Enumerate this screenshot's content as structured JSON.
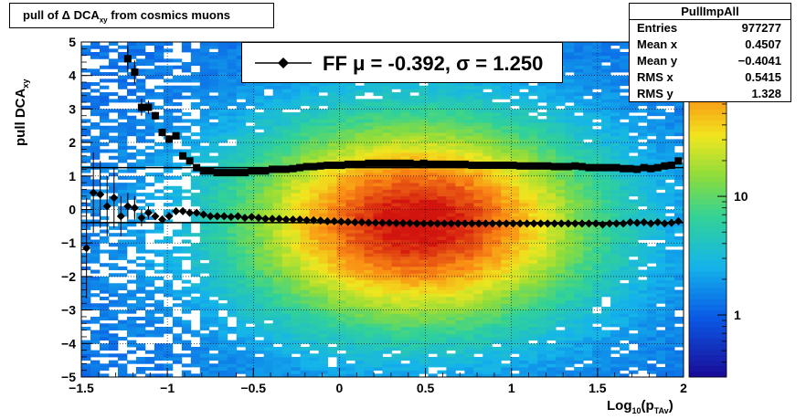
{
  "title": {
    "prefix": "pull of ",
    "delta": "Δ",
    "main": " DCA",
    "sub": "xy",
    "suffix": " from cosmics muons"
  },
  "axis": {
    "ylabel_main": "pull DCA",
    "ylabel_sub": "xy",
    "xlabel_main": "Log",
    "xlabel_sub1": "10",
    "xlabel_paren": "(p",
    "xlabel_sub2": "TAv",
    "xlabel_close": ")"
  },
  "stats": {
    "name": "PullImpAll",
    "rows": [
      {
        "label": "Entries",
        "value": "977277"
      },
      {
        "label": "Mean x",
        "value": "0.4507"
      },
      {
        "label": "Mean y",
        "value": "−0.4041"
      },
      {
        "label": "RMS x",
        "value": "0.5415"
      },
      {
        "label": "RMS y",
        "value": "1.328"
      }
    ]
  },
  "legend": {
    "text": "FF μ = -0.392, σ =   1.250"
  },
  "chart_data": {
    "type": "heatmap",
    "xlim": [
      -1.5,
      2.0
    ],
    "ylim": [
      -5,
      5
    ],
    "x_ticks": [
      "−1.5",
      "−1",
      "−0.5",
      "0",
      "0.5",
      "1",
      "1.5",
      "2"
    ],
    "x_tick_values": [
      -1.5,
      -1,
      -0.5,
      0,
      0.5,
      1,
      1.5,
      2
    ],
    "y_ticks": [
      "−5",
      "−4",
      "−3",
      "−2",
      "−1",
      "0",
      "1",
      "2",
      "3",
      "4",
      "5"
    ],
    "y_tick_values": [
      -5,
      -4,
      -3,
      -2,
      -1,
      0,
      1,
      2,
      3,
      4,
      5
    ],
    "colorbar_ticks": [
      {
        "label": "1",
        "value": 1
      },
      {
        "label": "10",
        "value": 10
      }
    ],
    "colorbar_range": [
      0.3,
      200
    ],
    "log_z": true,
    "grid": true,
    "density_peak": {
      "x": 0.45,
      "y": -0.4
    },
    "mean_fit_value": -0.392,
    "sigma_fit_value": 1.25,
    "mean_points": [
      [
        -1.47,
        -1.15
      ],
      [
        -1.43,
        0.5
      ],
      [
        -1.39,
        0.45
      ],
      [
        -1.35,
        0.1
      ],
      [
        -1.31,
        0.35
      ],
      [
        -1.27,
        -0.2
      ],
      [
        -1.23,
        0.1
      ],
      [
        -1.19,
        0.05
      ],
      [
        -1.15,
        -0.25
      ],
      [
        -1.11,
        -0.1
      ],
      [
        -1.07,
        -0.2
      ],
      [
        -1.03,
        -0.3
      ],
      [
        -0.99,
        -0.2
      ],
      [
        -0.95,
        -0.05
      ],
      [
        -0.91,
        -0.05
      ],
      [
        -0.87,
        -0.1
      ],
      [
        -0.83,
        -0.1
      ],
      [
        -0.79,
        -0.15
      ],
      [
        -0.75,
        -0.2
      ],
      [
        -0.71,
        -0.2
      ],
      [
        -0.67,
        -0.2
      ],
      [
        -0.63,
        -0.22
      ],
      [
        -0.59,
        -0.2
      ],
      [
        -0.55,
        -0.25
      ],
      [
        -0.51,
        -0.22
      ],
      [
        -0.47,
        -0.25
      ],
      [
        -0.43,
        -0.28
      ],
      [
        -0.39,
        -0.28
      ],
      [
        -0.35,
        -0.28
      ],
      [
        -0.31,
        -0.3
      ],
      [
        -0.27,
        -0.3
      ],
      [
        -0.23,
        -0.3
      ],
      [
        -0.19,
        -0.32
      ],
      [
        -0.15,
        -0.32
      ],
      [
        -0.11,
        -0.33
      ],
      [
        -0.07,
        -0.35
      ],
      [
        -0.03,
        -0.35
      ],
      [
        0.01,
        -0.36
      ],
      [
        0.05,
        -0.37
      ],
      [
        0.09,
        -0.38
      ],
      [
        0.13,
        -0.38
      ],
      [
        0.17,
        -0.39
      ],
      [
        0.21,
        -0.4
      ],
      [
        0.25,
        -0.4
      ],
      [
        0.29,
        -0.4
      ],
      [
        0.33,
        -0.41
      ],
      [
        0.37,
        -0.41
      ],
      [
        0.41,
        -0.41
      ],
      [
        0.45,
        -0.42
      ],
      [
        0.49,
        -0.42
      ],
      [
        0.53,
        -0.42
      ],
      [
        0.57,
        -0.42
      ],
      [
        0.61,
        -0.42
      ],
      [
        0.65,
        -0.42
      ],
      [
        0.69,
        -0.42
      ],
      [
        0.73,
        -0.42
      ],
      [
        0.77,
        -0.42
      ],
      [
        0.81,
        -0.42
      ],
      [
        0.85,
        -0.42
      ],
      [
        0.89,
        -0.42
      ],
      [
        0.93,
        -0.42
      ],
      [
        0.97,
        -0.42
      ],
      [
        1.01,
        -0.42
      ],
      [
        1.05,
        -0.42
      ],
      [
        1.09,
        -0.42
      ],
      [
        1.13,
        -0.42
      ],
      [
        1.17,
        -0.42
      ],
      [
        1.21,
        -0.42
      ],
      [
        1.25,
        -0.42
      ],
      [
        1.29,
        -0.42
      ],
      [
        1.33,
        -0.42
      ],
      [
        1.37,
        -0.42
      ],
      [
        1.41,
        -0.42
      ],
      [
        1.45,
        -0.42
      ],
      [
        1.49,
        -0.42
      ],
      [
        1.53,
        -0.45
      ],
      [
        1.57,
        -0.42
      ],
      [
        1.61,
        -0.42
      ],
      [
        1.65,
        -0.42
      ],
      [
        1.69,
        -0.38
      ],
      [
        1.73,
        -0.4
      ],
      [
        1.77,
        -0.38
      ],
      [
        1.81,
        -0.42
      ],
      [
        1.85,
        -0.38
      ],
      [
        1.89,
        -0.42
      ],
      [
        1.93,
        -0.4
      ],
      [
        1.97,
        -0.35
      ]
    ],
    "mean_error_bars": [
      [
        -1.47,
        1.5
      ],
      [
        -1.43,
        1.2
      ],
      [
        -1.39,
        1.0
      ],
      [
        -1.35,
        0.9
      ],
      [
        -1.31,
        0.9
      ],
      [
        -1.27,
        0.6
      ],
      [
        -1.23,
        0.4
      ],
      [
        -1.19,
        0.3
      ],
      [
        -1.15,
        0.25
      ],
      [
        -1.11,
        0.2
      ]
    ],
    "sigma_points": [
      [
        -1.23,
        4.5
      ],
      [
        -1.19,
        4.1
      ],
      [
        -1.15,
        3.05
      ],
      [
        -1.11,
        3.05
      ],
      [
        -1.07,
        2.8
      ],
      [
        -1.03,
        2.3
      ],
      [
        -0.99,
        2.1
      ],
      [
        -0.95,
        2.2
      ],
      [
        -0.91,
        1.6
      ],
      [
        -0.87,
        1.45
      ],
      [
        -0.83,
        1.25
      ],
      [
        -0.79,
        1.15
      ],
      [
        -0.75,
        1.15
      ],
      [
        -0.71,
        1.1
      ],
      [
        -0.67,
        1.1
      ],
      [
        -0.63,
        1.1
      ],
      [
        -0.59,
        1.1
      ],
      [
        -0.55,
        1.1
      ],
      [
        -0.51,
        1.15
      ],
      [
        -0.47,
        1.15
      ],
      [
        -0.43,
        1.15
      ],
      [
        -0.39,
        1.2
      ],
      [
        -0.35,
        1.2
      ],
      [
        -0.31,
        1.2
      ],
      [
        -0.27,
        1.22
      ],
      [
        -0.23,
        1.25
      ],
      [
        -0.19,
        1.28
      ],
      [
        -0.15,
        1.28
      ],
      [
        -0.11,
        1.3
      ],
      [
        -0.07,
        1.32
      ],
      [
        -0.03,
        1.32
      ],
      [
        0.01,
        1.32
      ],
      [
        0.05,
        1.35
      ],
      [
        0.09,
        1.35
      ],
      [
        0.13,
        1.35
      ],
      [
        0.17,
        1.38
      ],
      [
        0.21,
        1.38
      ],
      [
        0.25,
        1.38
      ],
      [
        0.29,
        1.38
      ],
      [
        0.33,
        1.38
      ],
      [
        0.37,
        1.38
      ],
      [
        0.41,
        1.38
      ],
      [
        0.45,
        1.35
      ],
      [
        0.49,
        1.38
      ],
      [
        0.53,
        1.35
      ],
      [
        0.57,
        1.35
      ],
      [
        0.61,
        1.35
      ],
      [
        0.65,
        1.35
      ],
      [
        0.69,
        1.35
      ],
      [
        0.73,
        1.35
      ],
      [
        0.77,
        1.32
      ],
      [
        0.81,
        1.32
      ],
      [
        0.85,
        1.32
      ],
      [
        0.89,
        1.32
      ],
      [
        0.93,
        1.32
      ],
      [
        0.97,
        1.32
      ],
      [
        1.01,
        1.32
      ],
      [
        1.05,
        1.3
      ],
      [
        1.09,
        1.3
      ],
      [
        1.13,
        1.3
      ],
      [
        1.17,
        1.3
      ],
      [
        1.21,
        1.3
      ],
      [
        1.25,
        1.28
      ],
      [
        1.29,
        1.28
      ],
      [
        1.33,
        1.28
      ],
      [
        1.37,
        1.3
      ],
      [
        1.41,
        1.28
      ],
      [
        1.45,
        1.25
      ],
      [
        1.49,
        1.25
      ],
      [
        1.53,
        1.25
      ],
      [
        1.57,
        1.25
      ],
      [
        1.61,
        1.25
      ],
      [
        1.65,
        1.22
      ],
      [
        1.69,
        1.22
      ],
      [
        1.73,
        1.2
      ],
      [
        1.77,
        1.25
      ],
      [
        1.81,
        1.22
      ],
      [
        1.85,
        1.25
      ],
      [
        1.89,
        1.3
      ],
      [
        1.93,
        1.32
      ],
      [
        1.97,
        1.45
      ]
    ],
    "sigma_error_bars": [
      [
        -1.23,
        0.35
      ],
      [
        -1.19,
        0.35
      ],
      [
        -1.15,
        0.15
      ],
      [
        -1.11,
        0.12
      ],
      [
        -1.07,
        0.12
      ],
      [
        -1.03,
        0.12
      ],
      [
        -0.99,
        0.12
      ],
      [
        -0.95,
        0.1
      ],
      [
        -0.91,
        0.08
      ]
    ]
  }
}
